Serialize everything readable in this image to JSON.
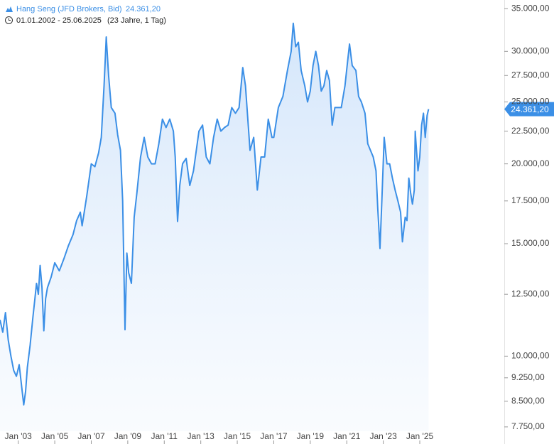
{
  "chart_data": {
    "type": "area",
    "series": [
      {
        "name": "Hang Seng (JFD Brokers, Bid)",
        "color": "#3b8fe6",
        "x": [
          2002.0,
          2002.15,
          2002.3,
          2002.45,
          2002.6,
          2002.75,
          2002.9,
          2003.05,
          2003.2,
          2003.3,
          2003.4,
          2003.5,
          2003.65,
          2003.8,
          2003.9,
          2004.0,
          2004.1,
          2004.2,
          2004.3,
          2004.4,
          2004.5,
          2004.6,
          2004.8,
          2005.0,
          2005.25,
          2005.5,
          2005.75,
          2006.0,
          2006.2,
          2006.4,
          2006.5,
          2006.75,
          2007.0,
          2007.2,
          2007.4,
          2007.55,
          2007.7,
          2007.82,
          2007.95,
          2008.1,
          2008.3,
          2008.45,
          2008.6,
          2008.72,
          2008.85,
          2008.95,
          2009.05,
          2009.2,
          2009.35,
          2009.5,
          2009.7,
          2009.9,
          2010.1,
          2010.3,
          2010.5,
          2010.7,
          2010.9,
          2011.1,
          2011.3,
          2011.5,
          2011.6,
          2011.73,
          2011.85,
          2012.0,
          2012.2,
          2012.4,
          2012.6,
          2012.9,
          2013.1,
          2013.3,
          2013.5,
          2013.7,
          2013.9,
          2014.1,
          2014.3,
          2014.5,
          2014.7,
          2014.9,
          2015.1,
          2015.3,
          2015.45,
          2015.6,
          2015.7,
          2015.9,
          2016.1,
          2016.3,
          2016.5,
          2016.7,
          2016.9,
          2017.0,
          2017.25,
          2017.5,
          2017.75,
          2017.95,
          2018.07,
          2018.2,
          2018.35,
          2018.5,
          2018.7,
          2018.85,
          2019.0,
          2019.15,
          2019.3,
          2019.45,
          2019.6,
          2019.75,
          2019.9,
          2020.05,
          2020.2,
          2020.35,
          2020.5,
          2020.7,
          2020.9,
          2021.05,
          2021.15,
          2021.3,
          2021.5,
          2021.65,
          2021.8,
          2022.0,
          2022.15,
          2022.3,
          2022.45,
          2022.6,
          2022.7,
          2022.82,
          2022.92,
          2023.05,
          2023.2,
          2023.35,
          2023.5,
          2023.65,
          2023.8,
          2023.95,
          2024.05,
          2024.2,
          2024.3,
          2024.4,
          2024.5,
          2024.6,
          2024.7,
          2024.75,
          2024.82,
          2024.9,
          2025.0,
          2025.1,
          2025.2,
          2025.3,
          2025.4,
          2025.48
        ],
        "values": [
          11400,
          10900,
          11700,
          10600,
          10000,
          9500,
          9300,
          9700,
          8900,
          8390,
          8800,
          9600,
          10400,
          11500,
          12200,
          13000,
          12500,
          13870,
          12800,
          10960,
          12300,
          12800,
          13300,
          14000,
          13600,
          14200,
          14900,
          15500,
          16300,
          16800,
          16000,
          17800,
          20000,
          19800,
          20800,
          22000,
          26500,
          31600,
          27500,
          24500,
          24000,
          22200,
          21000,
          17500,
          11000,
          14500,
          13500,
          13000,
          16500,
          18000,
          20500,
          22000,
          20500,
          20000,
          20000,
          21500,
          23500,
          22800,
          23500,
          22500,
          20500,
          16250,
          18500,
          20000,
          20400,
          18500,
          19500,
          22500,
          23000,
          20500,
          20000,
          22000,
          23500,
          22500,
          22800,
          23000,
          24500,
          24000,
          24500,
          28300,
          26500,
          23000,
          21000,
          22000,
          18200,
          20500,
          20500,
          23500,
          22000,
          22000,
          24500,
          25500,
          28000,
          30000,
          33200,
          30500,
          31000,
          28000,
          26500,
          25000,
          26000,
          28500,
          30000,
          28500,
          26000,
          26500,
          28000,
          27000,
          23000,
          24500,
          24500,
          24500,
          26500,
          29000,
          30800,
          28500,
          28000,
          25500,
          25000,
          24000,
          21500,
          21000,
          20500,
          19500,
          17000,
          14740,
          17500,
          22000,
          20000,
          20000,
          19000,
          18200,
          17500,
          16800,
          15100,
          16500,
          16300,
          19000,
          18000,
          17300,
          18200,
          22500,
          21000,
          19500,
          20500,
          23000,
          24000,
          22000,
          23800,
          24361.2
        ]
      }
    ],
    "last_price_label": "24.361,20",
    "date_range": "01.01.2002 - 25.06.2025",
    "duration": "(23 Jahre, 1 Tag)",
    "log_scale": true,
    "xlim": [
      2002,
      2029.63
    ],
    "xticks": [
      {
        "value": 2003,
        "label": "Jan '03"
      },
      {
        "value": 2005,
        "label": "Jan '05"
      },
      {
        "value": 2007,
        "label": "Jan '07"
      },
      {
        "value": 2009,
        "label": "Jan '09"
      },
      {
        "value": 2011,
        "label": "Jan '11"
      },
      {
        "value": 2013,
        "label": "Jan '13"
      },
      {
        "value": 2015,
        "label": "Jan '15"
      },
      {
        "value": 2017,
        "label": "Jan '17"
      },
      {
        "value": 2019,
        "label": "Jan '19"
      },
      {
        "value": 2021,
        "label": "Jan '21"
      },
      {
        "value": 2023,
        "label": "Jan '23"
      },
      {
        "value": 2025,
        "label": "Jan '25"
      }
    ],
    "ylim": [
      7630,
      36100
    ],
    "yticks": [
      {
        "value": 7750,
        "label": "7.750,00"
      },
      {
        "value": 8500,
        "label": "8.500,00"
      },
      {
        "value": 9250,
        "label": "9.250,00"
      },
      {
        "value": 10000,
        "label": "10.000,00"
      },
      {
        "value": 12500,
        "label": "12.500,00"
      },
      {
        "value": 15000,
        "label": "15.000,00"
      },
      {
        "value": 17500,
        "label": "17.500,00"
      },
      {
        "value": 20000,
        "label": "20.000,00"
      },
      {
        "value": 22500,
        "label": "22.500,00"
      },
      {
        "value": 25000,
        "label": "25.000,00"
      },
      {
        "value": 27500,
        "label": "27.500,00"
      },
      {
        "value": 30000,
        "label": "30.000,00"
      },
      {
        "value": 35000,
        "label": "35.000,00"
      }
    ]
  }
}
